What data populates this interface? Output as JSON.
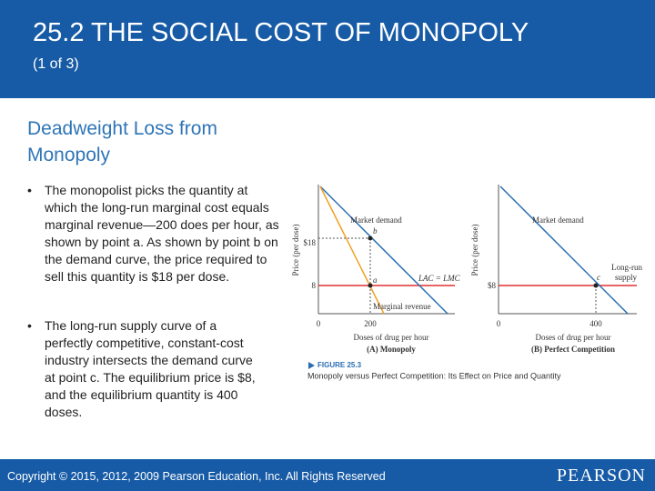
{
  "header": {
    "title": "25.2 THE SOCIAL COST OF MONOPOLY",
    "subtitle": "(1 of 3)"
  },
  "heading": [
    "Deadweight Loss from",
    "Monopoly"
  ],
  "bullets": [
    "The monopolist picks the quantity at which the long-run marginal cost equals marginal revenue—200 does per hour, as shown by point a. As shown by point b on the demand curve, the price required to sell this quantity is $18 per dose.",
    "The long-run supply curve of a perfectly competitive, constant-cost industry intersects the demand curve at point c. The equilibrium price is $8, and the equilibrium quantity is 400 doses."
  ],
  "figure": {
    "panels": [
      {
        "y_label": "Price (per dose)",
        "y_ticks": [
          "$18",
          "8"
        ],
        "x_ticks": [
          "0",
          "200"
        ],
        "x_label": "Doses of drug per hour",
        "title": "(A) Monopoly",
        "curve_labels": [
          "Market demand",
          "Marginal revenue",
          "LAC = LMC"
        ],
        "points": [
          "b",
          "a"
        ]
      },
      {
        "y_label": "Price (per dose)",
        "y_ticks": [
          "$8"
        ],
        "x_ticks": [
          "0",
          "400"
        ],
        "x_label": "Doses of drug per hour",
        "title": "(B) Perfect Competition",
        "curve_labels": [
          "Market demand",
          "Long-run",
          "supply"
        ],
        "points": [
          "c"
        ]
      }
    ],
    "caption_number": "FIGURE 25.3",
    "caption": "Monopoly versus Perfect Competition: Its Effect on Price and Quantity"
  },
  "footer": {
    "copyright": "Copyright © 2015, 2012, 2009 Pearson Education, Inc. All Rights Reserved",
    "logo": "PEARSON"
  }
}
